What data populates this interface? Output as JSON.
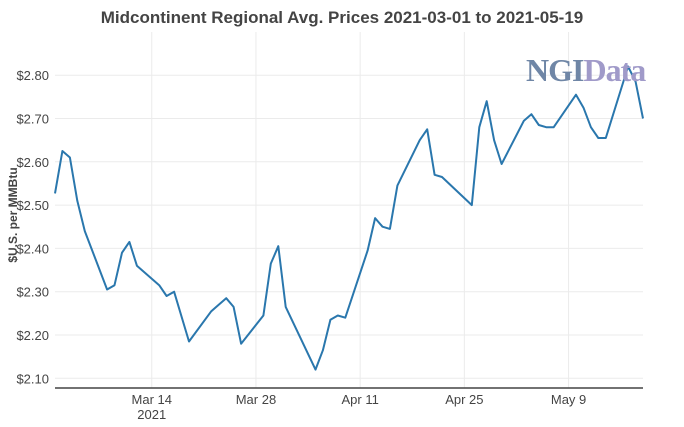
{
  "chart_data": {
    "type": "line",
    "title": "Midcontinent Regional Avg. Prices 2021-03-01 to 2021-05-19",
    "xlabel": "",
    "ylabel": "$U.S. per MMBtu",
    "ylim": [
      2.08,
      2.86
    ],
    "xlim": [
      "2021-03-01",
      "2021-05-19"
    ],
    "grid": true,
    "line_color": "#2a77ad",
    "yticks": [
      "$2.10",
      "$2.20",
      "$2.30",
      "$2.40",
      "$2.50",
      "$2.60",
      "$2.70",
      "$2.80"
    ],
    "ytick_values": [
      2.1,
      2.2,
      2.3,
      2.4,
      2.5,
      2.6,
      2.7,
      2.8
    ],
    "xticks": [
      {
        "date": "2021-03-14",
        "label": "Mar 14",
        "sub": "2021"
      },
      {
        "date": "2021-03-28",
        "label": "Mar 28",
        "sub": ""
      },
      {
        "date": "2021-04-11",
        "label": "Apr 11",
        "sub": ""
      },
      {
        "date": "2021-04-25",
        "label": "Apr 25",
        "sub": ""
      },
      {
        "date": "2021-05-09",
        "label": "May 9",
        "sub": ""
      }
    ],
    "x": [
      "2021-03-01",
      "2021-03-02",
      "2021-03-03",
      "2021-03-04",
      "2021-03-05",
      "2021-03-08",
      "2021-03-09",
      "2021-03-10",
      "2021-03-11",
      "2021-03-12",
      "2021-03-15",
      "2021-03-16",
      "2021-03-17",
      "2021-03-19",
      "2021-03-22",
      "2021-03-23",
      "2021-03-24",
      "2021-03-25",
      "2021-03-26",
      "2021-03-29",
      "2021-03-30",
      "2021-03-31",
      "2021-04-01",
      "2021-04-05",
      "2021-04-06",
      "2021-04-07",
      "2021-04-08",
      "2021-04-09",
      "2021-04-12",
      "2021-04-13",
      "2021-04-14",
      "2021-04-15",
      "2021-04-16",
      "2021-04-19",
      "2021-04-20",
      "2021-04-21",
      "2021-04-22",
      "2021-04-26",
      "2021-04-27",
      "2021-04-28",
      "2021-04-29",
      "2021-04-30",
      "2021-05-03",
      "2021-05-04",
      "2021-05-05",
      "2021-05-06",
      "2021-05-07",
      "2021-05-10",
      "2021-05-11",
      "2021-05-12",
      "2021-05-13",
      "2021-05-14",
      "2021-05-17",
      "2021-05-18",
      "2021-05-19"
    ],
    "y": [
      2.527,
      2.625,
      2.61,
      2.51,
      2.44,
      2.305,
      2.315,
      2.39,
      2.415,
      2.36,
      2.315,
      2.29,
      2.3,
      2.185,
      2.255,
      2.27,
      2.285,
      2.265,
      2.18,
      2.245,
      2.365,
      2.405,
      2.265,
      2.12,
      2.165,
      2.235,
      2.245,
      2.24,
      2.395,
      2.47,
      2.45,
      2.445,
      2.545,
      2.65,
      2.675,
      2.57,
      2.565,
      2.5,
      2.68,
      2.74,
      2.65,
      2.595,
      2.695,
      2.71,
      2.685,
      2.68,
      2.68,
      2.755,
      2.725,
      2.68,
      2.655,
      2.655,
      2.82,
      2.785,
      2.7
    ]
  },
  "logo": {
    "part1": "NGI",
    "part2": "Data",
    "color1": "#6f86a6",
    "color2": "#a09ac9"
  }
}
